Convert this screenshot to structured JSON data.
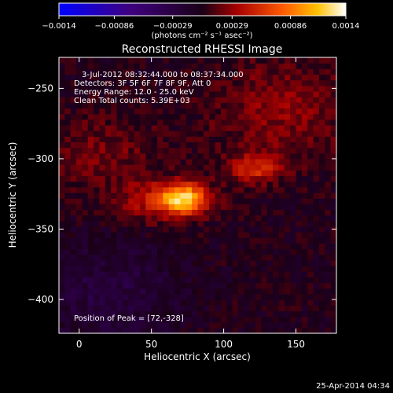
{
  "chart_data": {
    "type": "heatmap",
    "title": "Reconstructed RHESSI Image",
    "xlabel": "Heliocentric X (arcsec)",
    "ylabel": "Heliocentric Y (arcsec)",
    "xlim": [
      -14,
      178
    ],
    "ylim": [
      -424,
      -228
    ],
    "x_ticks": [
      0,
      50,
      100,
      150
    ],
    "y_ticks": [
      -250,
      -300,
      -350,
      -400
    ],
    "colorbar": {
      "range": [
        -0.0014,
        0.0014
      ],
      "tick_values": [
        -0.0014,
        -0.00086,
        -0.00029,
        0.00029,
        0.00086,
        0.0014
      ],
      "tick_labels": [
        "-0.0014",
        "-0.00086",
        "-0.00029",
        "0.00029",
        "0.00086",
        "0.0014"
      ],
      "units_label": "(photons cm⁻² s⁻¹ asec⁻²)"
    },
    "annotations": [
      "3-Jul-2012 08:32:44.000 to 08:37:34.000",
      "Detectors: 3F 5F 6F 7F 8F 9F, Att 0",
      "Energy Range: 12.0 - 25.0 keV",
      "Clean    Total counts: 5.39E+03"
    ],
    "peak_label": "Position of Peak = [72,-328]",
    "peak": [
      72,
      -328
    ],
    "sources": [
      {
        "x": 72,
        "y": -328,
        "sx": 11,
        "sy": 7,
        "amp": 0.00098
      },
      {
        "x": 58,
        "y": -330,
        "sx": 22,
        "sy": 11,
        "amp": 0.00042
      },
      {
        "x": 122,
        "y": -307,
        "sx": 12,
        "sy": 7,
        "amp": 0.0005
      },
      {
        "x": 140,
        "y": -265,
        "sx": 35,
        "sy": 28,
        "amp": 0.00028
      },
      {
        "x": 15,
        "y": -295,
        "sx": 30,
        "sy": 20,
        "amp": 0.00022
      }
    ],
    "background_level": -2e-05
  },
  "footer": {
    "timestamp": "25-Apr-2014 04:34"
  }
}
